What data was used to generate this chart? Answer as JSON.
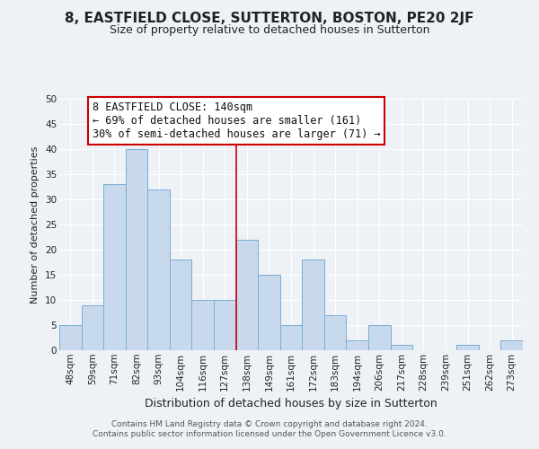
{
  "title": "8, EASTFIELD CLOSE, SUTTERTON, BOSTON, PE20 2JF",
  "subtitle": "Size of property relative to detached houses in Sutterton",
  "xlabel": "Distribution of detached houses by size in Sutterton",
  "ylabel": "Number of detached properties",
  "bin_labels": [
    "48sqm",
    "59sqm",
    "71sqm",
    "82sqm",
    "93sqm",
    "104sqm",
    "116sqm",
    "127sqm",
    "138sqm",
    "149sqm",
    "161sqm",
    "172sqm",
    "183sqm",
    "194sqm",
    "206sqm",
    "217sqm",
    "228sqm",
    "239sqm",
    "251sqm",
    "262sqm",
    "273sqm"
  ],
  "bar_values": [
    5,
    9,
    33,
    40,
    32,
    18,
    10,
    10,
    22,
    15,
    5,
    18,
    7,
    2,
    5,
    1,
    0,
    0,
    1,
    0,
    2
  ],
  "bar_color": "#c8d9ee",
  "bar_edge_color": "#7aadd4",
  "vline_index": 8,
  "vline_color": "#cc0000",
  "ylim": [
    0,
    50
  ],
  "yticks": [
    0,
    5,
    10,
    15,
    20,
    25,
    30,
    35,
    40,
    45,
    50
  ],
  "annotation_title": "8 EASTFIELD CLOSE: 140sqm",
  "annotation_line1": "← 69% of detached houses are smaller (161)",
  "annotation_line2": "30% of semi-detached houses are larger (71) →",
  "annotation_box_color": "#ffffff",
  "annotation_box_edge": "#cc0000",
  "footer_line1": "Contains HM Land Registry data © Crown copyright and database right 2024.",
  "footer_line2": "Contains public sector information licensed under the Open Government Licence v3.0.",
  "background_color": "#eef2f7",
  "grid_color": "#ffffff",
  "title_fontsize": 11,
  "subtitle_fontsize": 9,
  "xlabel_fontsize": 9,
  "ylabel_fontsize": 8,
  "tick_fontsize": 7.5,
  "footer_fontsize": 6.5,
  "annot_fontsize": 8.5
}
